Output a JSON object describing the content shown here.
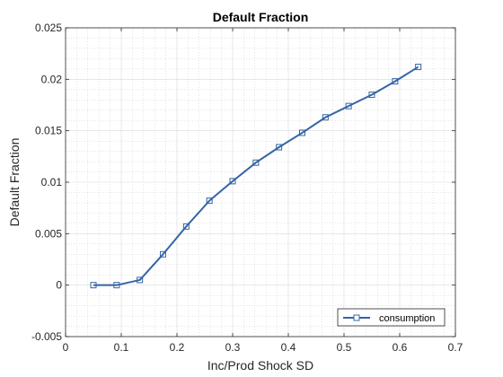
{
  "chart_data": {
    "type": "line",
    "title": "Default Fraction",
    "xlabel": "Inc/Prod Shock SD",
    "ylabel": "Default Fraction",
    "xlim": [
      0,
      0.7
    ],
    "ylim": [
      -0.005,
      0.025
    ],
    "xticks": [
      0,
      0.1,
      0.2,
      0.3,
      0.4,
      0.5,
      0.6,
      0.7
    ],
    "yticks": [
      -0.005,
      0,
      0.005,
      0.01,
      0.015,
      0.02,
      0.025
    ],
    "xtick_labels": [
      "0",
      "0.1",
      "0.2",
      "0.3",
      "0.4",
      "0.5",
      "0.6",
      "0.7"
    ],
    "ytick_labels": [
      "-0.005",
      "0",
      "0.005",
      "0.01",
      "0.015",
      "0.02",
      "0.025"
    ],
    "grid": true,
    "minor_grid": true,
    "legend_position": "bottom-right",
    "series": [
      {
        "name": "consumption",
        "marker": "square",
        "color": "#3465a4",
        "x": [
          0.05,
          0.0917,
          0.1333,
          0.175,
          0.2167,
          0.2583,
          0.3,
          0.3417,
          0.3833,
          0.425,
          0.4667,
          0.5083,
          0.55,
          0.5917,
          0.6333
        ],
        "y": [
          0.0,
          0.0,
          0.0005,
          0.003,
          0.0057,
          0.0082,
          0.0101,
          0.0119,
          0.0134,
          0.0148,
          0.0163,
          0.0174,
          0.0185,
          0.0198,
          0.0212
        ]
      }
    ]
  }
}
